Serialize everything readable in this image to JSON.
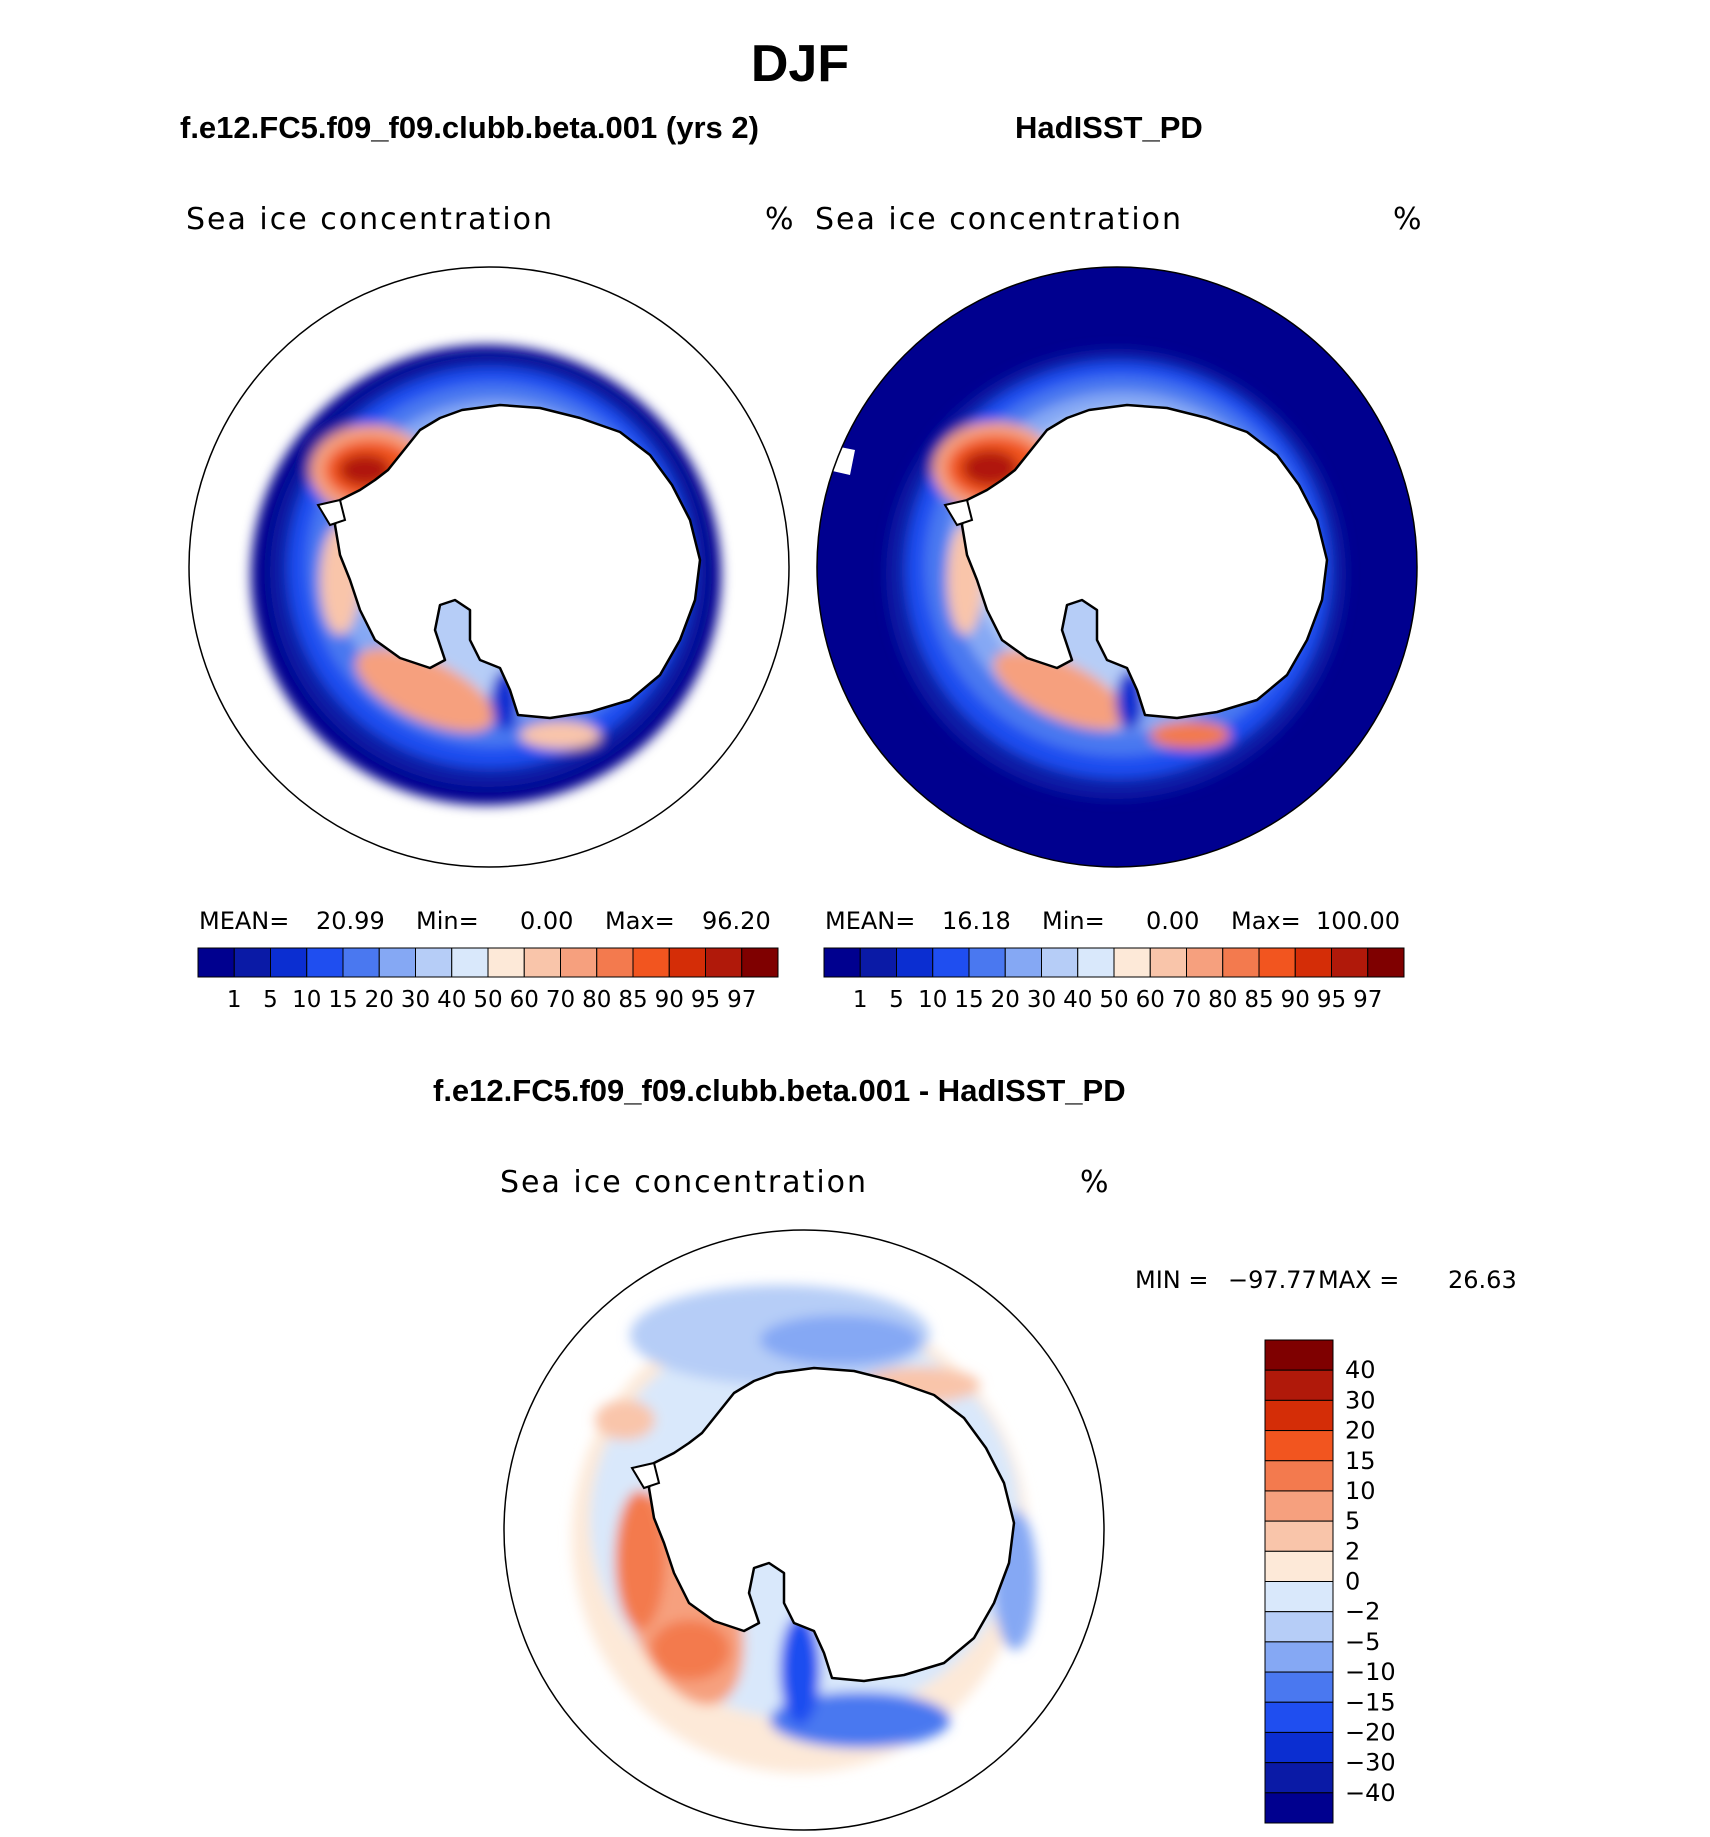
{
  "title": "DJF",
  "panels": [
    {
      "id": "model",
      "case_title": "f.e12.FC5.f09_f09.clubb.beta.001 (yrs 2)",
      "variable": "Sea ice concentration",
      "units": "%",
      "stats": {
        "mean_label": "MEAN=",
        "mean": "20.99",
        "min_label": "Min=",
        "min": "0.00",
        "max_label": "Max=",
        "max": "96.20"
      }
    },
    {
      "id": "obs",
      "case_title": "HadISST_PD",
      "variable": "Sea ice concentration",
      "units": "%",
      "stats": {
        "mean_label": "MEAN=",
        "mean": "16.18",
        "min_label": "Min=",
        "min": "0.00",
        "max_label": "Max=",
        "max": "100.00"
      }
    },
    {
      "id": "diff",
      "case_title": "f.e12.FC5.f09_f09.clubb.beta.001 - HadISST_PD",
      "variable": "Sea ice concentration",
      "units": "%",
      "stats": {
        "min_label": "MIN =",
        "min": "−97.77",
        "max_label": "MAX =",
        "max": "26.63"
      }
    }
  ],
  "colorbar_abs": {
    "levels": [
      "1",
      "5",
      "10",
      "15",
      "20",
      "30",
      "40",
      "50",
      "60",
      "70",
      "80",
      "85",
      "90",
      "95",
      "97"
    ],
    "colors": [
      "#00008f",
      "#0a1aa6",
      "#0b2ed1",
      "#1f4ef0",
      "#4a78f0",
      "#85a8f4",
      "#b6cdf7",
      "#d9e8fb",
      "#fde9d8",
      "#f9c5aa",
      "#f6a07e",
      "#f37a4e",
      "#f2551f",
      "#d42d07",
      "#b0190a",
      "#7f0000"
    ]
  },
  "colorbar_diff": {
    "levels": [
      "40",
      "30",
      "20",
      "15",
      "10",
      "5",
      "2",
      "0",
      "−2",
      "−5",
      "−10",
      "−15",
      "−20",
      "−30",
      "−40"
    ],
    "colors": [
      "#7f0000",
      "#b0190a",
      "#d42d07",
      "#f2551f",
      "#f37a4e",
      "#f6a07e",
      "#f9c5aa",
      "#fde9d8",
      "#d9e8fb",
      "#b6cdf7",
      "#85a8f4",
      "#4a78f0",
      "#1f4ef0",
      "#0b2ed1",
      "#0a1aa6",
      "#00008f"
    ]
  }
}
